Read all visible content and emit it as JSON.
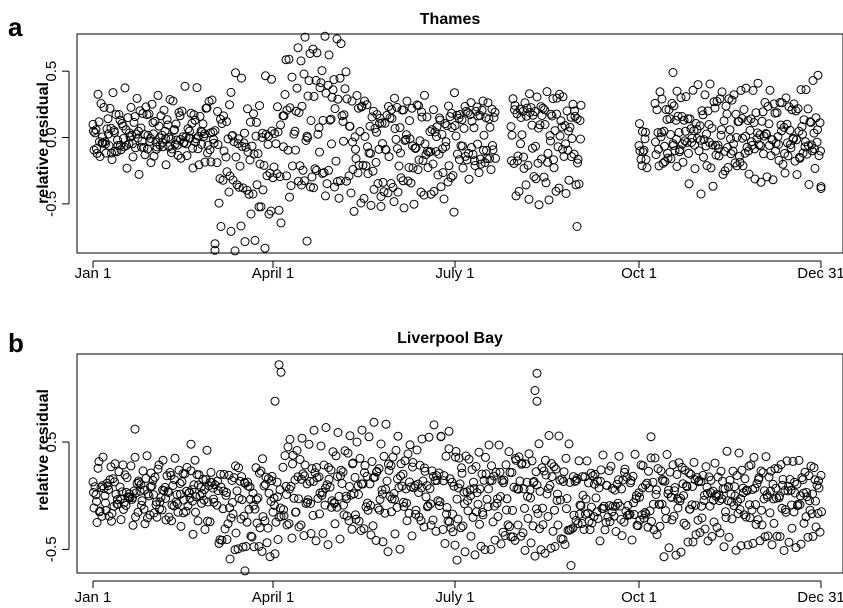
{
  "chart_data": [
    {
      "panel_label": "a",
      "type": "scatter",
      "title": "Thames",
      "xlabel": "",
      "ylabel": "relative residual",
      "x_tick_labels": [
        "Jan 1",
        "April 1",
        "July 1",
        "Oct 1",
        "Dec 31"
      ],
      "x_tick_days": [
        1,
        91,
        182,
        274,
        365
      ],
      "y_ticks": [
        "-0.5",
        "0.0",
        "0.5"
      ],
      "y_tick_values": [
        -0.5,
        0.0,
        0.5
      ],
      "ylim": [
        -0.87,
        0.78
      ],
      "xlim": [
        -7,
        376
      ],
      "grid": false,
      "legend": "none",
      "segments": [
        {
          "start": 1,
          "end": 62,
          "pattern": [
            0.02,
            -0.08,
            0.15,
            0.05,
            -0.12,
            0.22,
            0.1,
            -0.05,
            0.28,
            0.0,
            -0.15,
            0.18
          ]
        },
        {
          "start": 63,
          "end": 95,
          "pattern": [
            -0.3,
            -0.05,
            -0.5,
            -0.2,
            -0.65,
            0.02,
            -0.35,
            -0.15,
            -0.8,
            -0.1
          ]
        },
        {
          "start": 96,
          "end": 128,
          "pattern": [
            0.1,
            0.25,
            0.4,
            0.55,
            0.18,
            -0.2,
            0.65,
            0.3,
            -0.35,
            0.45,
            0.72,
            0.05
          ]
        },
        {
          "start": 129,
          "end": 183,
          "pattern": [
            -0.2,
            0.1,
            -0.4,
            0.15,
            -0.25,
            -0.5,
            0.05,
            -0.1,
            0.2,
            -0.3
          ]
        },
        {
          "start": 184,
          "end": 202,
          "pattern": [
            0.18,
            0.1,
            -0.15,
            0.2,
            -0.2,
            0.15
          ]
        },
        {
          "start": 210,
          "end": 245,
          "pattern": [
            0.2,
            0.05,
            0.28,
            -0.25,
            0.15,
            -0.35,
            0.22,
            -0.1,
            -0.45,
            0.1
          ]
        },
        {
          "start": 274,
          "end": 278,
          "pattern": [
            -0.1,
            -0.15,
            -0.12
          ]
        },
        {
          "start": 282,
          "end": 365,
          "pattern": [
            0.15,
            -0.1,
            0.3,
            0.05,
            -0.2,
            0.22,
            0.0,
            0.35,
            -0.15,
            0.1,
            -0.3,
            0.18
          ]
        }
      ],
      "extra_points": [
        {
          "x": 291,
          "y": 0.49
        },
        {
          "x": 293,
          "y": 0.35
        },
        {
          "x": 70,
          "y": 0.34
        },
        {
          "x": 62,
          "y": -0.85
        },
        {
          "x": 62,
          "y": -0.8
        },
        {
          "x": 108,
          "y": -0.78
        },
        {
          "x": 145,
          "y": -0.52
        },
        {
          "x": 365,
          "y": -0.37
        },
        {
          "x": 243,
          "y": -0.67
        }
      ]
    },
    {
      "panel_label": "b",
      "type": "scatter",
      "title": "Liverpool Bay",
      "xlabel": "",
      "ylabel": "relative residual",
      "x_tick_labels": [
        "Jan 1",
        "April 1",
        "July 1",
        "Oct 1",
        "Dec 31"
      ],
      "x_tick_days": [
        1,
        91,
        182,
        274,
        365
      ],
      "y_ticks": [
        "-0.5",
        "0.5"
      ],
      "y_tick_values": [
        -0.5,
        0.5
      ],
      "ylim": [
        -0.72,
        1.32
      ],
      "xlim": [
        -7,
        376
      ],
      "grid": false,
      "legend": "none",
      "segments": [
        {
          "start": 1,
          "end": 62,
          "pattern": [
            0.05,
            -0.1,
            0.2,
            0.0,
            -0.25,
            0.15,
            0.3,
            -0.05,
            0.1,
            -0.15,
            0.25,
            0.02
          ]
        },
        {
          "start": 63,
          "end": 95,
          "pattern": [
            -0.2,
            0.05,
            -0.45,
            -0.3,
            0.1,
            -0.5,
            -0.15,
            0.15
          ]
        },
        {
          "start": 96,
          "end": 175,
          "pattern": [
            0.2,
            -0.1,
            0.45,
            0.05,
            -0.3,
            0.35,
            -0.2,
            0.6,
            0.1,
            -0.4,
            0.25,
            0.0
          ]
        },
        {
          "start": 176,
          "end": 240,
          "pattern": [
            -0.3,
            0.15,
            -0.5,
            0.3,
            0.0,
            -0.2,
            0.45,
            0.1,
            -0.4,
            0.2
          ]
        },
        {
          "start": 241,
          "end": 280,
          "pattern": [
            -0.2,
            -0.25,
            0.1,
            -0.3,
            0.2,
            -0.15,
            0.3,
            -0.1
          ]
        },
        {
          "start": 281,
          "end": 365,
          "pattern": [
            0.15,
            -0.2,
            0.3,
            -0.05,
            -0.4,
            0.25,
            0.05,
            -0.3,
            0.2,
            -0.15,
            0.1,
            -0.45
          ]
        }
      ],
      "extra_points": [
        {
          "x": 94,
          "y": 1.22
        },
        {
          "x": 95,
          "y": 1.15
        },
        {
          "x": 92,
          "y": 0.88
        },
        {
          "x": 223,
          "y": 1.14
        },
        {
          "x": 222,
          "y": 0.98
        },
        {
          "x": 223,
          "y": 0.88
        },
        {
          "x": 22,
          "y": 0.62
        },
        {
          "x": 50,
          "y": 0.48
        },
        {
          "x": 77,
          "y": -0.7
        },
        {
          "x": 175,
          "y": 0.55
        },
        {
          "x": 179,
          "y": 0.6
        },
        {
          "x": 183,
          "y": -0.6
        },
        {
          "x": 240,
          "y": -0.65
        },
        {
          "x": 280,
          "y": 0.55
        }
      ]
    }
  ]
}
